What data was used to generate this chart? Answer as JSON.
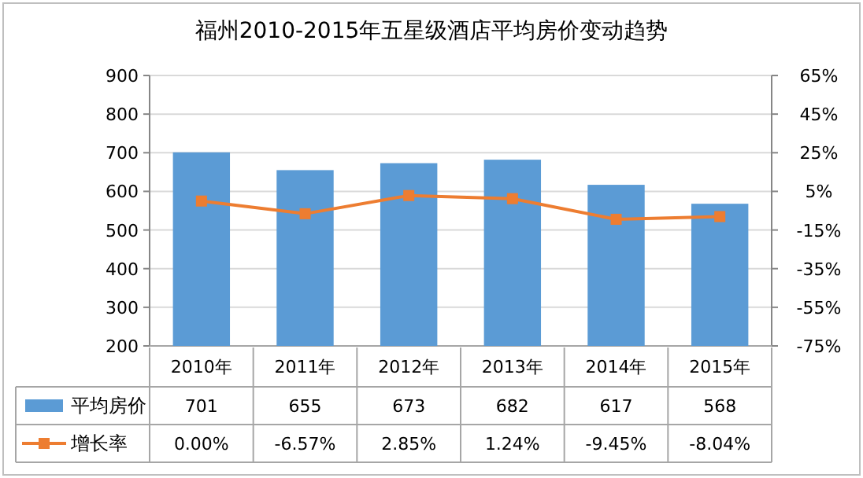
{
  "chart_data": {
    "type": "bar",
    "title": "福州2010-2015年五星级酒店平均房价变动趋势",
    "categories": [
      "2010年",
      "2011年",
      "2012年",
      "2013年",
      "2014年",
      "2015年"
    ],
    "series": [
      {
        "name": "平均房价",
        "color": "#5b9bd5",
        "values": [
          701,
          655,
          673,
          682,
          617,
          568
        ],
        "value_labels": [
          "701",
          "655",
          "673",
          "682",
          "617",
          "568"
        ]
      },
      {
        "name": "增长率",
        "type": "line",
        "axis": "y2",
        "color": "#ed7d31",
        "marker": "square",
        "values": [
          0.0,
          -6.57,
          2.85,
          1.24,
          -9.45,
          -8.04
        ],
        "value_labels": [
          "0.00%",
          "-6.57%",
          "2.85%",
          "1.24%",
          "-9.45%",
          "-8.04%"
        ]
      }
    ],
    "ylim": [
      200,
      900
    ],
    "yticks": [
      200,
      300,
      400,
      500,
      600,
      700,
      800,
      900
    ],
    "y2lim": [
      -75,
      65
    ],
    "y2ticks": [
      {
        "value": 65,
        "label": "65%"
      },
      {
        "value": 45,
        "label": "45%"
      },
      {
        "value": 25,
        "label": "25%"
      },
      {
        "value": 5,
        "label": "5%"
      },
      {
        "value": -15,
        "label": "-15%"
      },
      {
        "value": -35,
        "label": "-35%"
      },
      {
        "value": -55,
        "label": "-55%"
      },
      {
        "value": -75,
        "label": "-75%"
      }
    ],
    "grid": "y",
    "legend": "bottom left"
  }
}
